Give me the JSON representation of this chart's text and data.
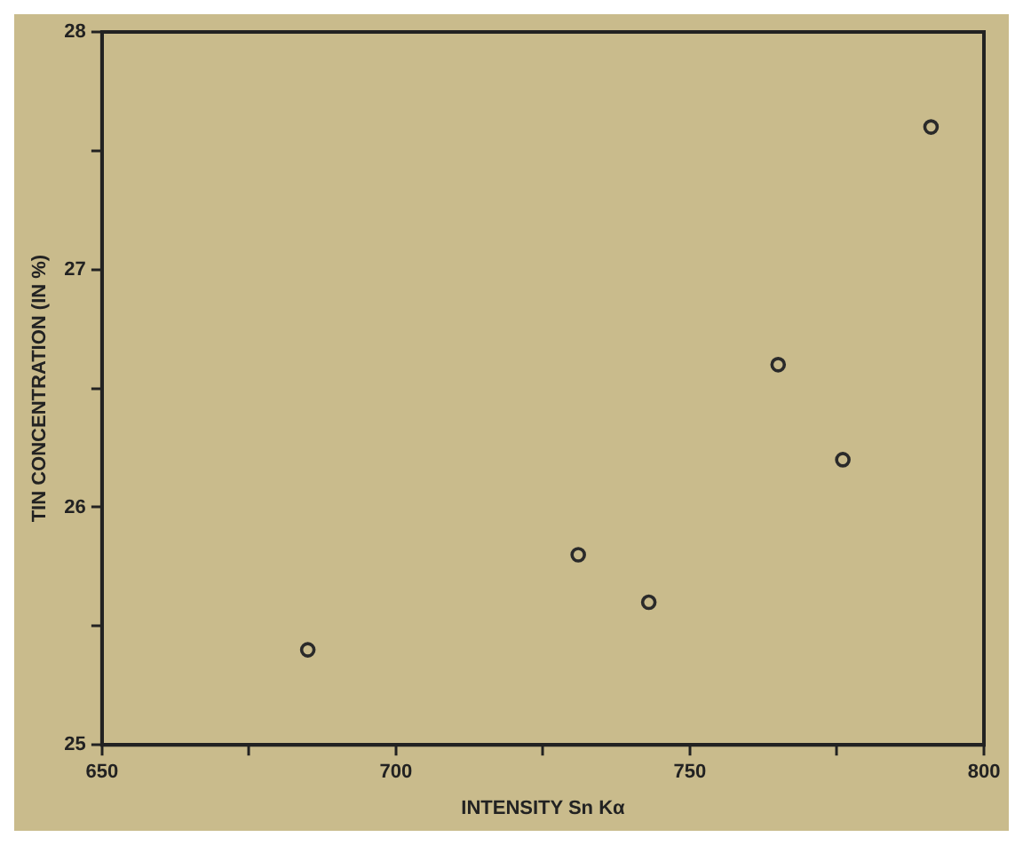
{
  "chart_data": {
    "type": "scatter",
    "xlabel": "INTENSITY Sn Kα",
    "ylabel": "TIN CONCENTRATION (IN %)",
    "x": [
      685,
      731,
      743,
      765,
      776,
      791
    ],
    "series": [
      {
        "color": "#2a2a2a",
        "values": [
          25.4,
          25.8,
          25.6,
          26.6,
          26.2,
          27.6
        ]
      }
    ],
    "xlim": [
      650,
      800
    ],
    "xticks": [
      650,
      {
        "value": 675,
        "label": null
      },
      700,
      {
        "value": 725,
        "label": null
      },
      750,
      {
        "value": 775,
        "label": null
      },
      800
    ],
    "ylim": [
      25,
      28
    ],
    "yticks": [
      25,
      {
        "value": 25.5,
        "label": null
      },
      26,
      {
        "value": 26.5,
        "label": null
      },
      27,
      {
        "value": 27.5,
        "label": null
      },
      28
    ],
    "grid": false,
    "legend": false,
    "marker": "circle"
  }
}
